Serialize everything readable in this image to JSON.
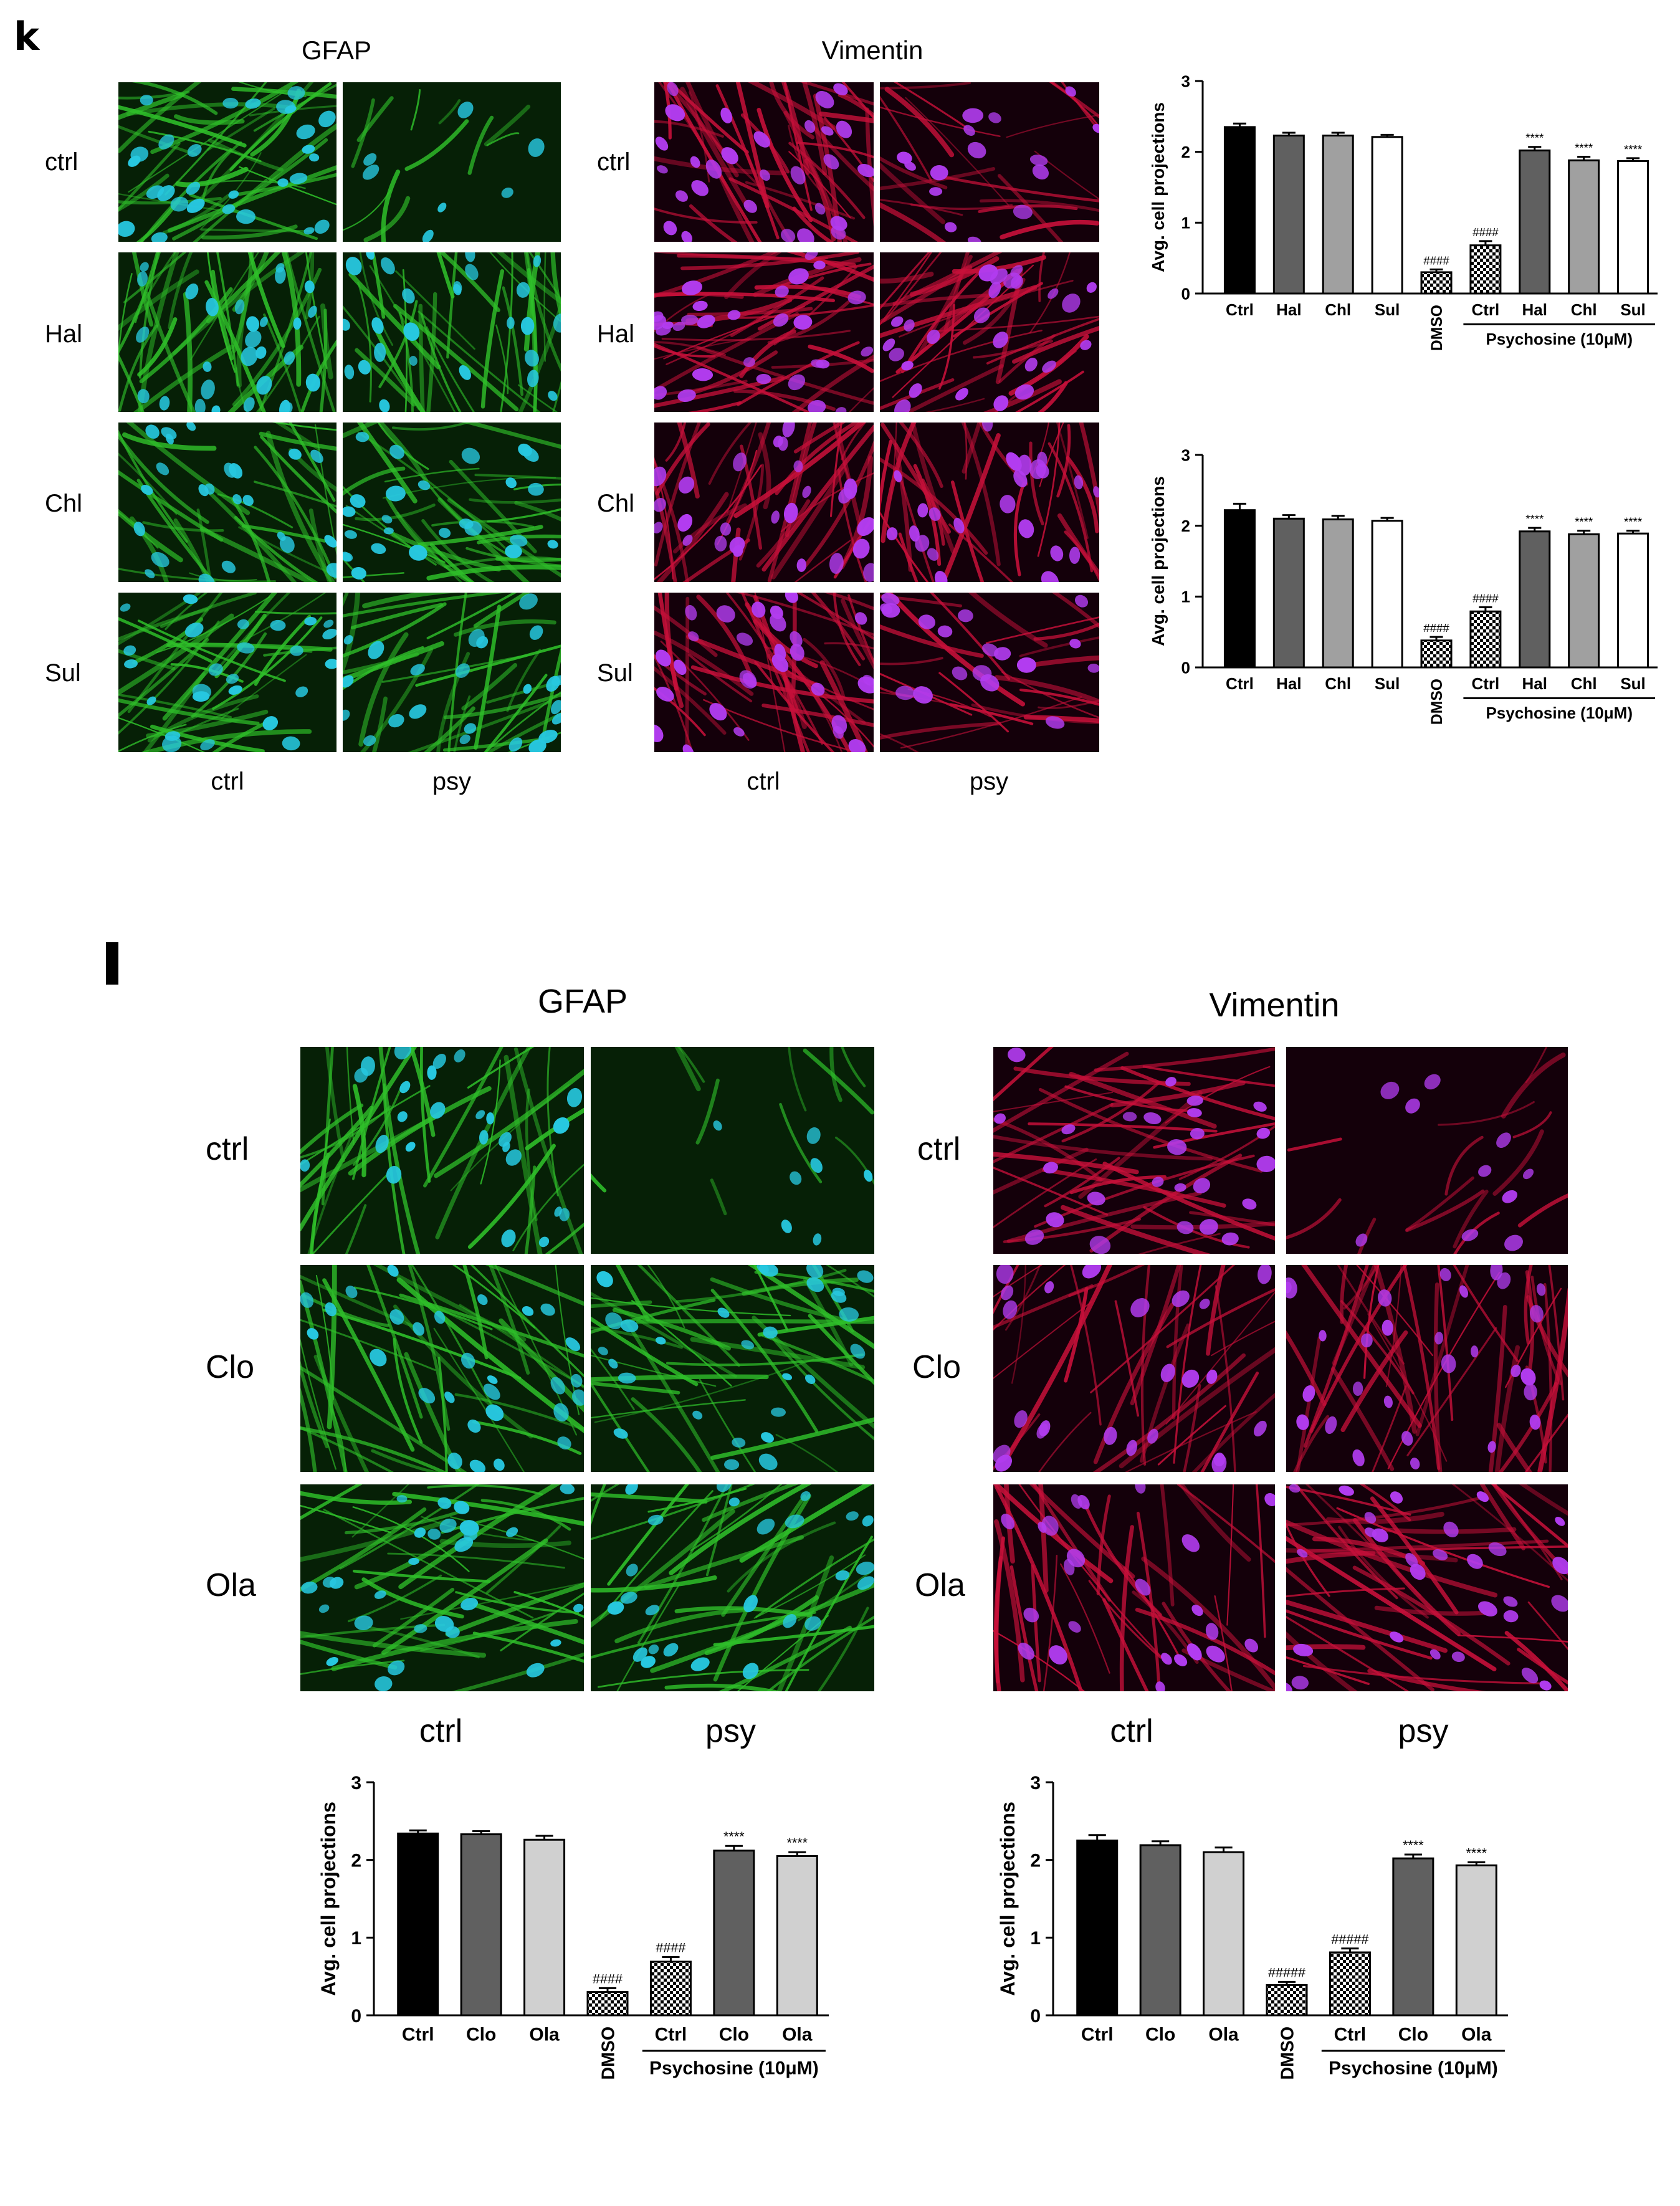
{
  "panel_k": {
    "letter": "k",
    "gfap_title": "GFAP",
    "vimentin_title": "Vimentin",
    "row_labels": [
      "ctrl",
      "Hal",
      "Chl",
      "Sul"
    ],
    "col_labels": [
      "ctrl",
      "psy"
    ]
  },
  "panel_l": {
    "letter": "l",
    "gfap_title": "GFAP",
    "vimentin_title": "Vimentin",
    "row_labels": [
      "ctrl",
      "Clo",
      "Ola"
    ],
    "col_labels": [
      "ctrl",
      "psy"
    ]
  },
  "colors": {
    "gfap_bg": "#062006",
    "gfap_fiber": "#2fbf2a",
    "gfap_nucleus": "#27c8e0",
    "vim_bg": "#14000a",
    "vim_fiber": "#c8103a",
    "vim_nucleus": "#b23cf0"
  },
  "chart_data": [
    {
      "id": "k-top",
      "type": "bar",
      "ylabel": "Avg. cell projections",
      "ylim": [
        0,
        3
      ],
      "yticks": [
        "0",
        "1",
        "2",
        "3"
      ],
      "categories": [
        "Ctrl",
        "Hal",
        "Chl",
        "Sul",
        "DMSO",
        "Ctrl",
        "Hal",
        "Chl",
        "Sul"
      ],
      "values": [
        2.35,
        2.23,
        2.23,
        2.21,
        0.3,
        0.68,
        2.02,
        1.88,
        1.87
      ],
      "errors": [
        0.05,
        0.04,
        0.04,
        0.03,
        0.04,
        0.06,
        0.05,
        0.05,
        0.04
      ],
      "fills": [
        "#000000",
        "#606060",
        "#a0a0a0",
        "#ffffff",
        "checker",
        "checker",
        "#606060",
        "#a0a0a0",
        "#ffffff"
      ],
      "annotations": [
        "",
        "",
        "",
        "",
        "####",
        "####",
        "****",
        "****",
        "****"
      ],
      "group_label": "Psychosine (10μM)"
    },
    {
      "id": "k-bottom",
      "type": "bar",
      "ylabel": "Avg. cell projections",
      "ylim": [
        0,
        3
      ],
      "yticks": [
        "0",
        "1",
        "2",
        "3"
      ],
      "categories": [
        "Ctrl",
        "Hal",
        "Chl",
        "Sul",
        "DMSO",
        "Ctrl",
        "Hal",
        "Chl",
        "Sul"
      ],
      "values": [
        2.22,
        2.1,
        2.09,
        2.07,
        0.38,
        0.79,
        1.92,
        1.88,
        1.89
      ],
      "errors": [
        0.09,
        0.05,
        0.05,
        0.04,
        0.05,
        0.06,
        0.05,
        0.05,
        0.04
      ],
      "fills": [
        "#000000",
        "#606060",
        "#a0a0a0",
        "#ffffff",
        "checker",
        "checker",
        "#606060",
        "#a0a0a0",
        "#ffffff"
      ],
      "annotations": [
        "",
        "",
        "",
        "",
        "####",
        "####",
        "****",
        "****",
        "****"
      ],
      "group_label": "Psychosine (10μM)"
    },
    {
      "id": "l-left",
      "type": "bar",
      "ylabel": "Avg. cell projections",
      "ylim": [
        0,
        3
      ],
      "yticks": [
        "0",
        "1",
        "2",
        "3"
      ],
      "categories": [
        "Ctrl",
        "Clo",
        "Ola",
        "DMSO",
        "Ctrl",
        "Clo",
        "Ola"
      ],
      "values": [
        2.34,
        2.33,
        2.26,
        0.3,
        0.69,
        2.12,
        2.05
      ],
      "errors": [
        0.04,
        0.04,
        0.05,
        0.05,
        0.06,
        0.06,
        0.05
      ],
      "fills": [
        "#000000",
        "#606060",
        "#d0d0d0",
        "checker",
        "checker",
        "#606060",
        "#d0d0d0"
      ],
      "annotations": [
        "",
        "",
        "",
        "####",
        "####",
        "****",
        "****"
      ],
      "group_label": "Psychosine (10μM)"
    },
    {
      "id": "l-right",
      "type": "bar",
      "ylabel": "Avg. cell projections",
      "ylim": [
        0,
        3
      ],
      "yticks": [
        "0",
        "1",
        "2",
        "3"
      ],
      "categories": [
        "Ctrl",
        "Clo",
        "Ola",
        "DMSO",
        "Ctrl",
        "Clo",
        "Ola"
      ],
      "values": [
        2.25,
        2.19,
        2.1,
        0.39,
        0.81,
        2.02,
        1.93
      ],
      "errors": [
        0.07,
        0.05,
        0.06,
        0.04,
        0.05,
        0.05,
        0.04
      ],
      "fills": [
        "#000000",
        "#606060",
        "#d0d0d0",
        "checker",
        "checker",
        "#606060",
        "#d0d0d0"
      ],
      "annotations": [
        "",
        "",
        "",
        "#####",
        "#####",
        "****",
        "****"
      ],
      "group_label": "Psychosine (10μM)"
    }
  ]
}
